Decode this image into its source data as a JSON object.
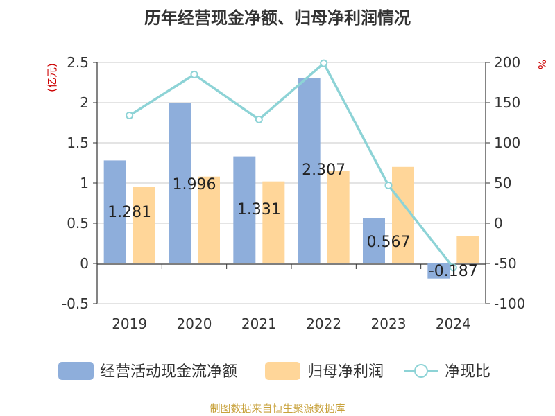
{
  "chart_data": {
    "type": "bar",
    "title": "历年经营现金净额、归母净利润情况",
    "left_axis_unit": "(亿元)",
    "right_axis_unit": "%",
    "categories": [
      "2019",
      "2020",
      "2021",
      "2022",
      "2023",
      "2024"
    ],
    "left_axis": {
      "min": -0.5,
      "max": 2.5,
      "ticks": [
        "-0.5",
        "0",
        "0.5",
        "1",
        "1.5",
        "2",
        "2.5"
      ]
    },
    "right_axis": {
      "min": -100,
      "max": 200,
      "ticks": [
        "-100",
        "-50",
        "0",
        "50",
        "100",
        "150",
        "200"
      ]
    },
    "series": [
      {
        "name": "经营活动现金流净额",
        "type": "bar",
        "axis": "left",
        "color": "#8eaedb",
        "values": [
          1.281,
          1.996,
          1.331,
          2.307,
          0.567,
          -0.187
        ],
        "labels": [
          "1.281",
          "1.996",
          "1.331",
          "2.307",
          "0.567",
          "-0.187"
        ]
      },
      {
        "name": "归母净利润",
        "type": "bar",
        "axis": "left",
        "color": "#ffd699",
        "values": [
          0.95,
          1.08,
          1.02,
          1.15,
          1.2,
          0.34
        ]
      },
      {
        "name": "净现比",
        "type": "line",
        "axis": "right",
        "color": "#8dd3d6",
        "values": [
          134,
          185,
          129,
          199,
          47,
          -55
        ]
      }
    ],
    "grid": true,
    "legend_position": "bottom"
  },
  "footer": {
    "source": "制图数据来自恒生聚源数据库",
    "source_color": "#c8a23c"
  }
}
